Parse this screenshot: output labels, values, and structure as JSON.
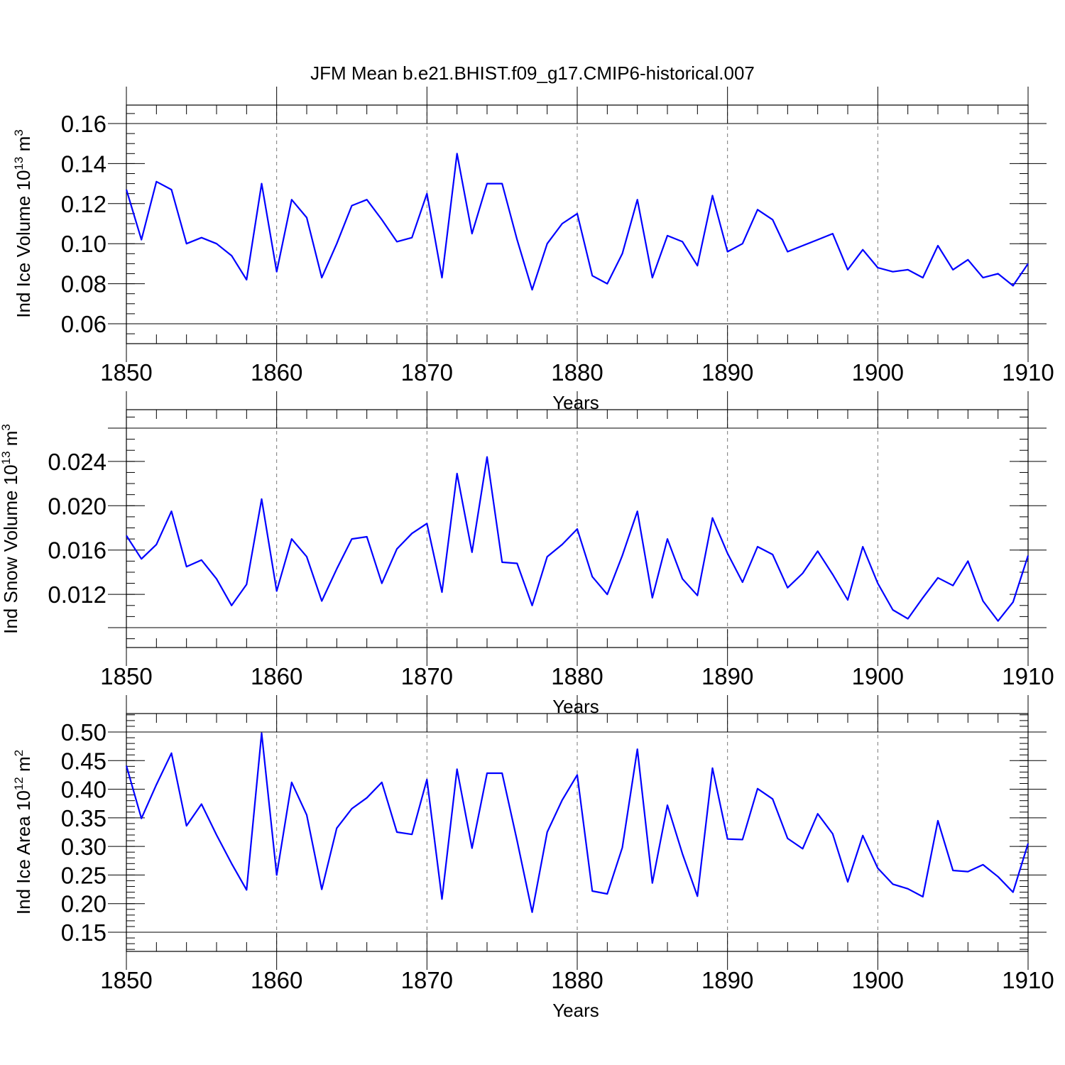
{
  "title": "JFM Mean b.e21.BHIST.f09_g17.CMIP6-historical.007",
  "line_color": "#0000ff",
  "chart_data": [
    {
      "type": "line",
      "ylabel_main": "Ind Ice Volume 10",
      "ylabel_exp": "13",
      "ylabel_unit": " m",
      "ylabel_unit_exp": "3",
      "xlabel": "Years",
      "xlim": [
        1850,
        1910
      ],
      "ylim": [
        0.06,
        0.16
      ],
      "xticks": [
        1850,
        1860,
        1870,
        1880,
        1890,
        1900,
        1910
      ],
      "xtick_labels": [
        "1850",
        "1860",
        "1870",
        "1880",
        "1890",
        "1900",
        "1910"
      ],
      "yticks": [
        0.06,
        0.08,
        0.1,
        0.12,
        0.14,
        0.16
      ],
      "ytick_labels": [
        "0.06",
        "0.08",
        "0.10",
        "0.12",
        "0.14",
        "0.16"
      ],
      "yminor_step": 0.005,
      "x": [
        1850,
        1851,
        1852,
        1853,
        1854,
        1855,
        1856,
        1857,
        1858,
        1859,
        1860,
        1861,
        1862,
        1863,
        1864,
        1865,
        1866,
        1867,
        1868,
        1869,
        1870,
        1871,
        1872,
        1873,
        1874,
        1875,
        1876,
        1877,
        1878,
        1879,
        1880,
        1881,
        1882,
        1883,
        1884,
        1885,
        1886,
        1887,
        1888,
        1889,
        1890,
        1891,
        1892,
        1893,
        1894,
        1895,
        1896,
        1897,
        1898,
        1899,
        1900,
        1901,
        1902,
        1903,
        1904,
        1905,
        1906,
        1907,
        1908,
        1909,
        1910
      ],
      "values": [
        0.127,
        0.102,
        0.131,
        0.127,
        0.1,
        0.103,
        0.1,
        0.094,
        0.082,
        0.13,
        0.086,
        0.122,
        0.113,
        0.083,
        0.1,
        0.119,
        0.122,
        0.112,
        0.101,
        0.103,
        0.125,
        0.083,
        0.145,
        0.105,
        0.13,
        0.13,
        0.102,
        0.077,
        0.1,
        0.11,
        0.115,
        0.084,
        0.08,
        0.095,
        0.122,
        0.083,
        0.104,
        0.101,
        0.089,
        0.124,
        0.096,
        0.1,
        0.117,
        0.112,
        0.096,
        0.099,
        0.102,
        0.105,
        0.087,
        0.097,
        0.088,
        0.086,
        0.087,
        0.083,
        0.099,
        0.087,
        0.092,
        0.083,
        0.085,
        0.079,
        0.09
      ]
    },
    {
      "type": "line",
      "ylabel_main": "Ind Snow Volume 10",
      "ylabel_exp": "13",
      "ylabel_unit": " m",
      "ylabel_unit_exp": "3",
      "xlabel": "Years",
      "xlim": [
        1850,
        1910
      ],
      "ylim": [
        0.009,
        0.027
      ],
      "xticks": [
        1850,
        1860,
        1870,
        1880,
        1890,
        1900,
        1910
      ],
      "xtick_labels": [
        "1850",
        "1860",
        "1870",
        "1880",
        "1890",
        "1900",
        "1910"
      ],
      "yticks": [
        0.012,
        0.016,
        0.02,
        0.024
      ],
      "ytick_labels": [
        "0.012",
        "0.016",
        "0.020",
        "0.024"
      ],
      "yminor_step": 0.001,
      "x": [
        1850,
        1851,
        1852,
        1853,
        1854,
        1855,
        1856,
        1857,
        1858,
        1859,
        1860,
        1861,
        1862,
        1863,
        1864,
        1865,
        1866,
        1867,
        1868,
        1869,
        1870,
        1871,
        1872,
        1873,
        1874,
        1875,
        1876,
        1877,
        1878,
        1879,
        1880,
        1881,
        1882,
        1883,
        1884,
        1885,
        1886,
        1887,
        1888,
        1889,
        1890,
        1891,
        1892,
        1893,
        1894,
        1895,
        1896,
        1897,
        1898,
        1899,
        1900,
        1901,
        1902,
        1903,
        1904,
        1905,
        1906,
        1907,
        1908,
        1909,
        1910
      ],
      "values": [
        0.0173,
        0.0152,
        0.0165,
        0.0195,
        0.0145,
        0.0151,
        0.0134,
        0.011,
        0.0129,
        0.0206,
        0.0123,
        0.017,
        0.0154,
        0.0114,
        0.0143,
        0.017,
        0.0172,
        0.013,
        0.0161,
        0.0175,
        0.0184,
        0.0122,
        0.0229,
        0.0158,
        0.0244,
        0.0149,
        0.0148,
        0.011,
        0.0154,
        0.0165,
        0.0179,
        0.0136,
        0.012,
        0.0155,
        0.0195,
        0.0117,
        0.017,
        0.0134,
        0.0119,
        0.0189,
        0.0157,
        0.0131,
        0.0163,
        0.0156,
        0.0126,
        0.0139,
        0.0159,
        0.0138,
        0.0115,
        0.0163,
        0.013,
        0.0106,
        0.0098,
        0.0117,
        0.0135,
        0.0128,
        0.015,
        0.0114,
        0.0096,
        0.0113,
        0.0155
      ]
    },
    {
      "type": "line",
      "ylabel_main": "Ind Ice Area 10",
      "ylabel_exp": "12",
      "ylabel_unit": " m",
      "ylabel_unit_exp": "2",
      "xlabel": "Years",
      "xlim": [
        1850,
        1910
      ],
      "ylim": [
        0.15,
        0.5
      ],
      "xticks": [
        1850,
        1860,
        1870,
        1880,
        1890,
        1900,
        1910
      ],
      "xtick_labels": [
        "1850",
        "1860",
        "1870",
        "1880",
        "1890",
        "1900",
        "1910"
      ],
      "yticks": [
        0.15,
        0.2,
        0.25,
        0.3,
        0.35,
        0.4,
        0.45,
        0.5
      ],
      "ytick_labels": [
        "0.15",
        "0.20",
        "0.25",
        "0.30",
        "0.35",
        "0.40",
        "0.45",
        "0.50"
      ],
      "yminor_step": 0.01,
      "x": [
        1850,
        1851,
        1852,
        1853,
        1854,
        1855,
        1856,
        1857,
        1858,
        1859,
        1860,
        1861,
        1862,
        1863,
        1864,
        1865,
        1866,
        1867,
        1868,
        1869,
        1870,
        1871,
        1872,
        1873,
        1874,
        1875,
        1876,
        1877,
        1878,
        1879,
        1880,
        1881,
        1882,
        1883,
        1884,
        1885,
        1886,
        1887,
        1888,
        1889,
        1890,
        1891,
        1892,
        1893,
        1894,
        1895,
        1896,
        1897,
        1898,
        1899,
        1900,
        1901,
        1902,
        1903,
        1904,
        1905,
        1906,
        1907,
        1908,
        1909,
        1910
      ],
      "values": [
        0.441,
        0.349,
        0.408,
        0.463,
        0.336,
        0.374,
        0.32,
        0.27,
        0.224,
        0.498,
        0.25,
        0.412,
        0.355,
        0.225,
        0.332,
        0.366,
        0.385,
        0.412,
        0.325,
        0.321,
        0.417,
        0.208,
        0.435,
        0.297,
        0.428,
        0.428,
        0.31,
        0.185,
        0.325,
        0.381,
        0.425,
        0.222,
        0.217,
        0.298,
        0.47,
        0.236,
        0.372,
        0.287,
        0.213,
        0.437,
        0.313,
        0.312,
        0.401,
        0.383,
        0.314,
        0.296,
        0.357,
        0.322,
        0.238,
        0.319,
        0.262,
        0.234,
        0.226,
        0.212,
        0.345,
        0.258,
        0.256,
        0.268,
        0.247,
        0.22,
        0.305
      ]
    }
  ]
}
